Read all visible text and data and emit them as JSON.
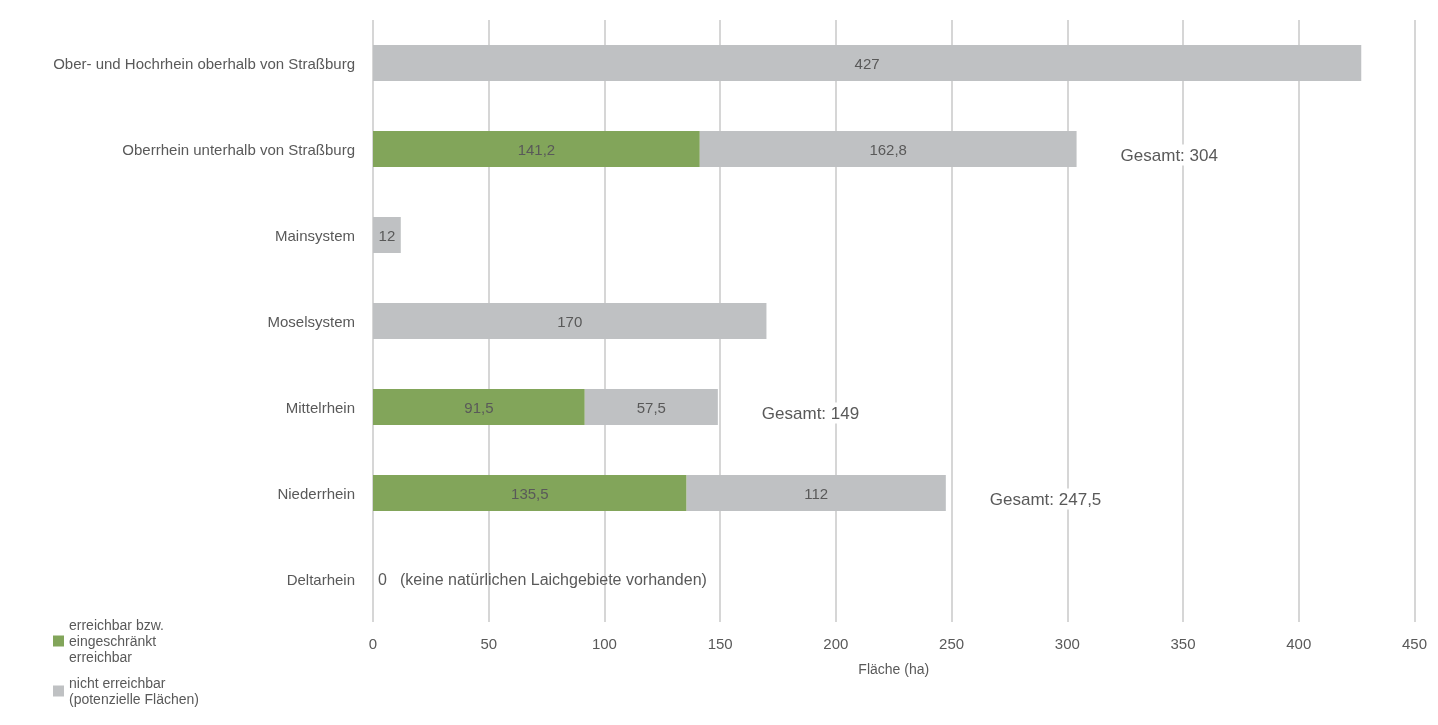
{
  "chart_data": {
    "type": "bar",
    "orientation": "horizontal",
    "stacked": true,
    "xlabel": "Fläche (ha)",
    "categories": [
      "Ober- und Hochrhein oberhalb von Straßburg",
      "Oberrhein unterhalb von Straßburg",
      "Mainsystem",
      "Moselsystem",
      "Mittelrhein",
      "Niederrhein",
      "Deltarhein"
    ],
    "series": [
      {
        "name": "erreichbar bzw. eingeschränkt erreichbar",
        "color": "#82a55a",
        "values": [
          0,
          141.2,
          0,
          0,
          91.5,
          135.5,
          0
        ],
        "value_labels": [
          null,
          "141,2",
          null,
          null,
          "91,5",
          "135,5",
          null
        ]
      },
      {
        "name": "nicht erreichbar (potenzielle Flächen)",
        "color": "#bfc1c3",
        "values": [
          427,
          162.8,
          12,
          170,
          57.5,
          112,
          0
        ],
        "value_labels": [
          "427",
          "162,8",
          "12",
          "170",
          "57,5",
          "112",
          "0"
        ]
      }
    ],
    "annotations": [
      "(keine natürlichen Laichgebiete vorhanden)"
    ],
    "totals": [
      null,
      "Gesamt: 304",
      null,
      null,
      "Gesamt: 149",
      "Gesamt: 247,5",
      null
    ],
    "xlim": [
      0,
      450
    ],
    "xticks": [
      0,
      50,
      100,
      150,
      200,
      250,
      300,
      350,
      400,
      450
    ],
    "grid": "x",
    "legend": "bottom left"
  }
}
